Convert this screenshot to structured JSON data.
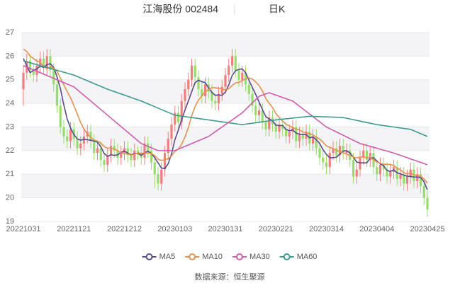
{
  "chart_data": {
    "type": "candlestick",
    "title": "江海股份 002484",
    "subtitle": "日K",
    "source": "数据来源：恒生聚源",
    "up_color": "#ef7f7f",
    "down_color": "#96dd6c",
    "grid": true,
    "ylim": [
      19,
      27
    ],
    "yticks": [
      19,
      20,
      21,
      22,
      23,
      24,
      25,
      26,
      27
    ],
    "categories": [
      "20221031",
      null,
      null,
      null,
      null,
      null,
      null,
      null,
      null,
      null,
      null,
      null,
      null,
      null,
      null,
      "20221121",
      null,
      null,
      null,
      null,
      null,
      null,
      null,
      null,
      null,
      null,
      null,
      null,
      null,
      null,
      "20221212",
      null,
      null,
      null,
      null,
      null,
      null,
      null,
      null,
      null,
      null,
      null,
      null,
      null,
      null,
      "20230103",
      null,
      null,
      null,
      null,
      null,
      null,
      null,
      null,
      null,
      null,
      null,
      null,
      null,
      null,
      "20230131",
      null,
      null,
      null,
      null,
      null,
      null,
      null,
      null,
      null,
      null,
      null,
      null,
      null,
      null,
      "20230221",
      null,
      null,
      null,
      null,
      null,
      null,
      null,
      null,
      null,
      null,
      null,
      null,
      null,
      null,
      "20230314",
      null,
      null,
      null,
      null,
      null,
      null,
      null,
      null,
      null,
      null,
      null,
      null,
      null,
      null,
      "20230404",
      null,
      null,
      null,
      null,
      null,
      null,
      null,
      null,
      null,
      null,
      null,
      null,
      null,
      null,
      "20230425"
    ],
    "open": [
      24.6,
      25.3,
      25.8,
      25.4,
      25.2,
      25.6,
      25.9,
      25.5,
      26.0,
      25.4,
      24.8,
      23.9,
      23.0,
      22.6,
      22.4,
      22.9,
      22.5,
      22.1,
      22.3,
      22.6,
      22.8,
      22.4,
      21.9,
      22.1,
      21.6,
      21.4,
      21.8,
      22.2,
      22.0,
      21.7,
      21.9,
      22.1,
      21.8,
      21.6,
      22.0,
      21.9,
      21.7,
      22.3,
      22.0,
      21.5,
      21.0,
      20.6,
      21.2,
      21.9,
      22.5,
      23.1,
      23.6,
      23.2,
      24.1,
      24.6,
      25.0,
      25.6,
      25.1,
      24.6,
      24.3,
      24.8,
      24.5,
      24.1,
      24.0,
      24.4,
      24.7,
      25.2,
      25.6,
      26.0,
      25.4,
      25.0,
      25.3,
      24.8,
      24.4,
      23.9,
      23.5,
      23.7,
      23.2,
      22.9,
      23.4,
      23.1,
      22.8,
      23.1,
      22.9,
      22.6,
      22.8,
      23.0,
      22.4,
      22.7,
      22.5,
      22.8,
      22.3,
      22.6,
      22.1,
      21.7,
      21.5,
      21.3,
      21.9,
      22.1,
      21.8,
      22.2,
      21.9,
      22.0,
      21.6,
      20.9,
      21.2,
      21.7,
      22.0,
      21.6,
      21.9,
      21.3,
      21.0,
      21.4,
      21.2,
      20.9,
      21.1,
      21.3,
      20.8,
      21.0,
      20.6,
      20.9,
      21.2,
      20.7,
      21.0,
      20.5,
      20.0
    ],
    "high": [
      25.6,
      26.1,
      26.1,
      25.7,
      25.9,
      26.2,
      26.2,
      26.3,
      26.3,
      25.7,
      25.1,
      24.2,
      23.3,
      22.9,
      23.2,
      23.2,
      22.8,
      22.6,
      22.9,
      23.1,
      23.1,
      22.7,
      22.4,
      22.4,
      21.9,
      22.1,
      22.5,
      22.5,
      22.3,
      22.2,
      22.4,
      22.4,
      22.1,
      22.3,
      22.2,
      22.2,
      22.6,
      22.6,
      22.3,
      21.8,
      21.3,
      21.5,
      22.2,
      22.8,
      23.4,
      23.9,
      23.9,
      24.4,
      24.9,
      25.3,
      25.9,
      25.9,
      25.4,
      24.9,
      25.1,
      25.1,
      24.8,
      24.4,
      24.7,
      25.0,
      25.5,
      25.9,
      26.3,
      26.3,
      25.7,
      25.6,
      25.6,
      25.1,
      24.7,
      24.2,
      24.0,
      24.0,
      23.5,
      23.7,
      23.7,
      23.4,
      23.4,
      23.4,
      23.2,
      23.1,
      23.3,
      23.3,
      23.0,
      23.0,
      23.1,
      23.1,
      22.9,
      22.9,
      22.4,
      22.0,
      21.8,
      22.2,
      22.4,
      22.4,
      22.5,
      22.5,
      22.3,
      22.3,
      21.9,
      21.5,
      22.0,
      22.3,
      22.3,
      22.2,
      22.2,
      21.6,
      21.7,
      21.7,
      21.5,
      21.4,
      21.6,
      21.6,
      21.3,
      21.3,
      21.2,
      21.5,
      21.5,
      21.3,
      21.3,
      20.8,
      20.3
    ],
    "low": [
      23.9,
      25.0,
      25.1,
      24.9,
      24.9,
      25.3,
      25.2,
      25.2,
      25.1,
      24.5,
      23.6,
      22.7,
      22.3,
      22.1,
      22.1,
      22.2,
      21.8,
      21.8,
      22.0,
      22.3,
      22.1,
      21.6,
      21.6,
      21.3,
      21.1,
      21.1,
      21.5,
      21.7,
      21.4,
      21.4,
      21.6,
      21.5,
      21.3,
      21.3,
      21.6,
      21.4,
      21.4,
      21.7,
      21.2,
      20.4,
      20.3,
      20.3,
      20.9,
      21.6,
      22.2,
      22.8,
      22.9,
      22.9,
      23.8,
      24.3,
      24.7,
      24.8,
      24.3,
      24.0,
      24.0,
      24.2,
      23.8,
      23.7,
      23.7,
      24.1,
      24.4,
      24.9,
      25.3,
      25.1,
      24.7,
      24.7,
      24.5,
      24.1,
      23.6,
      23.2,
      23.2,
      22.9,
      22.6,
      22.6,
      22.8,
      22.5,
      22.5,
      22.6,
      22.3,
      22.3,
      22.5,
      22.1,
      22.1,
      22.2,
      22.2,
      22.0,
      22.0,
      21.8,
      21.4,
      21.2,
      21.0,
      21.0,
      21.6,
      21.5,
      21.5,
      21.6,
      21.6,
      21.3,
      20.6,
      20.6,
      20.9,
      21.4,
      21.3,
      21.3,
      21.0,
      20.7,
      20.7,
      20.9,
      20.6,
      20.6,
      20.8,
      20.5,
      20.5,
      20.3,
      20.3,
      20.6,
      20.4,
      20.4,
      20.2,
      19.7,
      19.2
    ],
    "close": [
      25.3,
      25.8,
      25.4,
      25.2,
      25.6,
      25.9,
      25.5,
      26.0,
      25.4,
      24.8,
      23.9,
      23.0,
      22.6,
      22.4,
      22.9,
      22.5,
      22.1,
      22.3,
      22.6,
      22.8,
      22.4,
      21.9,
      22.1,
      21.6,
      21.4,
      21.8,
      22.2,
      22.0,
      21.7,
      21.9,
      22.1,
      21.8,
      21.6,
      22.0,
      21.9,
      21.7,
      22.3,
      22.0,
      21.5,
      21.0,
      20.6,
      21.2,
      21.9,
      22.5,
      23.1,
      23.6,
      23.2,
      24.1,
      24.6,
      25.0,
      25.6,
      25.1,
      24.6,
      24.3,
      24.8,
      24.5,
      24.1,
      24.0,
      24.4,
      24.7,
      25.2,
      25.6,
      26.0,
      25.4,
      25.0,
      25.3,
      24.8,
      24.4,
      23.9,
      23.5,
      23.7,
      23.2,
      22.9,
      23.4,
      23.1,
      22.8,
      23.1,
      22.9,
      22.6,
      22.8,
      23.0,
      22.4,
      22.7,
      22.5,
      22.8,
      22.3,
      22.6,
      22.1,
      21.7,
      21.5,
      21.3,
      21.9,
      22.1,
      21.8,
      22.2,
      21.9,
      22.0,
      21.6,
      20.9,
      21.2,
      21.7,
      22.0,
      21.6,
      21.9,
      21.3,
      21.0,
      21.4,
      21.2,
      20.9,
      21.1,
      21.3,
      20.8,
      21.0,
      20.6,
      20.9,
      21.2,
      20.7,
      21.0,
      20.5,
      20.0,
      19.5
    ],
    "series": [
      {
        "name": "MA5",
        "color": "#5a4a8c",
        "values": [
          25.9,
          25.6,
          25.3,
          25.4,
          25.46,
          25.58,
          25.52,
          25.64,
          25.68,
          25.52,
          25.12,
          24.62,
          23.94,
          23.34,
          22.96,
          22.68,
          22.5,
          22.44,
          22.48,
          22.46,
          22.44,
          22.4,
          22.36,
          22.16,
          21.88,
          21.76,
          21.82,
          21.8,
          21.82,
          21.92,
          21.98,
          21.9,
          21.82,
          21.88,
          21.88,
          21.8,
          21.9,
          21.98,
          21.88,
          21.7,
          21.48,
          21.26,
          21.24,
          21.44,
          21.86,
          22.46,
          22.86,
          23.3,
          23.72,
          24.1,
          24.5,
          24.88,
          24.98,
          24.92,
          24.88,
          24.66,
          24.46,
          24.34,
          24.36,
          24.34,
          24.48,
          24.78,
          25.18,
          25.38,
          25.44,
          25.46,
          25.3,
          24.98,
          24.68,
          24.38,
          24.06,
          23.74,
          23.44,
          23.34,
          23.26,
          23.08,
          23.06,
          23.06,
          22.9,
          22.84,
          22.88,
          22.74,
          22.7,
          22.68,
          22.68,
          22.54,
          22.58,
          22.46,
          22.3,
          22.04,
          21.84,
          21.7,
          21.7,
          21.72,
          21.86,
          21.98,
          22.0,
          21.9,
          21.72,
          21.52,
          21.48,
          21.48,
          21.48,
          21.68,
          21.7,
          21.56,
          21.44,
          21.36,
          21.16,
          21.12,
          21.18,
          21.06,
          21.02,
          20.96,
          20.92,
          20.9,
          20.88,
          20.88,
          20.86,
          20.68,
          20.34
        ]
      },
      {
        "name": "MA10",
        "color": "#e39150",
        "values": [
          26.3,
          26.2,
          26.0,
          25.9,
          25.8,
          25.74,
          25.56,
          25.47,
          25.54,
          25.49,
          25.35,
          25.07,
          24.79,
          24.51,
          24.24,
          23.9,
          23.56,
          23.19,
          22.91,
          22.71,
          22.56,
          22.45,
          22.4,
          22.32,
          22.17,
          22.1,
          22.11,
          22.08,
          21.99,
          21.9,
          21.87,
          21.86,
          21.81,
          21.85,
          21.9,
          21.89,
          21.9,
          21.9,
          21.88,
          21.79,
          21.64,
          21.58,
          21.61,
          21.66,
          21.78,
          21.97,
          22.06,
          22.27,
          22.58,
          22.98,
          23.48,
          23.87,
          24.14,
          24.32,
          24.49,
          24.58,
          24.67,
          24.66,
          24.64,
          24.61,
          24.57,
          24.62,
          24.76,
          24.87,
          24.89,
          24.97,
          25.04,
          25.08,
          25.03,
          24.91,
          24.76,
          24.52,
          24.21,
          24.01,
          23.82,
          23.57,
          23.4,
          23.25,
          23.12,
          23.05,
          22.98,
          22.9,
          22.88,
          22.79,
          22.76,
          22.71,
          22.66,
          22.58,
          22.49,
          22.36,
          22.19,
          22.14,
          22.08,
          22.01,
          21.95,
          21.91,
          21.85,
          21.8,
          21.72,
          21.69,
          21.73,
          21.74,
          21.69,
          21.7,
          21.61,
          21.52,
          21.46,
          21.42,
          21.42,
          21.41,
          21.37,
          21.25,
          21.19,
          21.06,
          21.02,
          21.04,
          20.97,
          20.95,
          20.91,
          20.8,
          20.62
        ]
      },
      {
        "name": "MA30",
        "color": "#d05cae",
        "values": [
          25.6,
          25.54,
          25.48,
          25.42,
          25.36,
          25.3,
          25.24,
          25.18,
          25.12,
          25.06,
          25.0,
          24.94,
          24.88,
          24.82,
          24.76,
          24.7,
          24.58,
          24.46,
          24.34,
          24.22,
          24.1,
          23.98,
          23.86,
          23.74,
          23.62,
          23.5,
          23.38,
          23.26,
          23.14,
          23.02,
          22.9,
          22.78,
          22.66,
          22.54,
          22.42,
          22.3,
          22.24,
          22.18,
          22.12,
          22.06,
          22.0,
          22.0,
          22.0,
          22.0,
          22.0,
          22.0,
          22.06,
          22.12,
          22.18,
          22.24,
          22.3,
          22.36,
          22.42,
          22.48,
          22.54,
          22.6,
          22.7,
          22.8,
          22.9,
          23.0,
          23.1,
          23.2,
          23.3,
          23.4,
          23.5,
          23.6,
          23.74,
          23.88,
          24.02,
          24.16,
          24.3,
          24.35,
          24.4,
          24.45,
          24.4,
          24.35,
          24.3,
          24.25,
          24.2,
          24.15,
          24.1,
          23.99,
          23.88,
          23.77,
          23.66,
          23.55,
          23.44,
          23.33,
          23.22,
          23.11,
          23.0,
          22.93,
          22.86,
          22.79,
          22.72,
          22.65,
          22.58,
          22.51,
          22.44,
          22.37,
          22.3,
          22.26,
          22.22,
          22.18,
          22.14,
          22.1,
          22.06,
          22.02,
          21.98,
          21.94,
          21.9,
          21.85,
          21.8,
          21.75,
          21.7,
          21.65,
          21.6,
          21.55,
          21.5,
          21.45,
          21.4
        ]
      },
      {
        "name": "MA60",
        "color": "#3d9a91",
        "values": [
          25.8,
          25.76,
          25.72,
          25.68,
          25.64,
          25.6,
          25.56,
          25.52,
          25.48,
          25.44,
          25.4,
          25.36,
          25.32,
          25.28,
          25.24,
          25.2,
          25.14,
          25.08,
          25.02,
          24.96,
          24.9,
          24.84,
          24.78,
          24.72,
          24.66,
          24.6,
          24.55,
          24.5,
          24.45,
          24.4,
          24.35,
          24.3,
          24.25,
          24.2,
          24.15,
          24.1,
          24.04,
          23.98,
          23.92,
          23.86,
          23.8,
          23.74,
          23.68,
          23.62,
          23.56,
          23.5,
          23.48,
          23.46,
          23.44,
          23.42,
          23.4,
          23.38,
          23.36,
          23.34,
          23.32,
          23.3,
          23.28,
          23.26,
          23.24,
          23.22,
          23.2,
          23.18,
          23.16,
          23.14,
          23.12,
          23.1,
          23.12,
          23.14,
          23.16,
          23.18,
          23.2,
          23.22,
          23.24,
          23.26,
          23.28,
          23.3,
          23.32,
          23.33,
          23.35,
          23.36,
          23.38,
          23.39,
          23.41,
          23.42,
          23.44,
          23.45,
          23.45,
          23.44,
          23.44,
          23.43,
          23.43,
          23.42,
          23.42,
          23.41,
          23.41,
          23.4,
          23.37,
          23.34,
          23.31,
          23.28,
          23.25,
          23.22,
          23.19,
          23.16,
          23.13,
          23.1,
          23.08,
          23.06,
          23.04,
          23.02,
          23.0,
          22.98,
          22.96,
          22.94,
          22.92,
          22.9,
          22.84,
          22.78,
          22.72,
          22.66,
          22.6
        ]
      }
    ]
  }
}
